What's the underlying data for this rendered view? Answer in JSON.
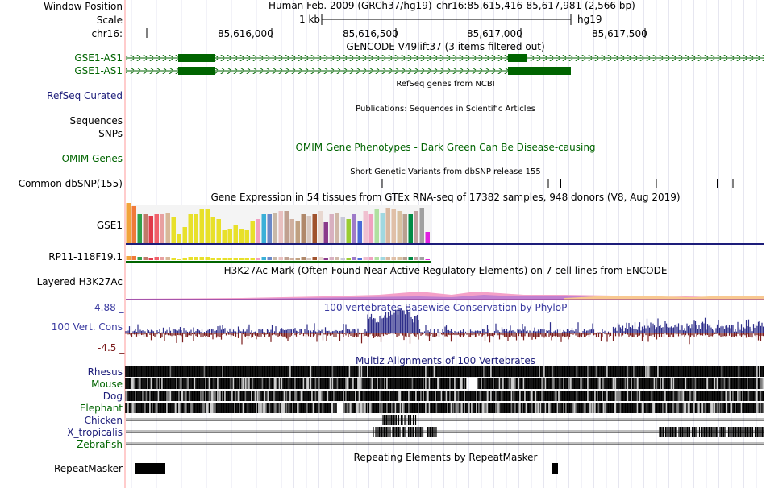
{
  "header": {
    "labels": {
      "window_position": "Window Position",
      "scale": "Scale",
      "chrom": "chr16:"
    },
    "assembly": "Human Feb. 2009 (GRCh37/hg19)",
    "position": "chr16:85,615,416-85,617,981 (2,566 bp)",
    "scale_value": "1 kb",
    "db": "hg19",
    "ticks": [
      "85,616,000",
      "85,616,500",
      "85,617,000",
      "85,617,500"
    ]
  },
  "tracks": {
    "gencode": {
      "title": "GENCODE V49lift37 (3 items filtered out)",
      "items": [
        "GSE1-AS1",
        "GSE1-AS1"
      ]
    },
    "refseq": {
      "title": "RefSeq genes from NCBI",
      "label": "RefSeq Curated"
    },
    "publications": {
      "title": "Publications: Sequences in Scientific Articles",
      "label_line1": "Sequences",
      "label_line2": "SNPs"
    },
    "omim": {
      "title": "OMIM Gene Phenotypes - Dark Green Can Be Disease-causing",
      "label": "OMIM Genes"
    },
    "dbsnp": {
      "title": "Short Genetic Variants from dbSNP release 155",
      "label": "Common dbSNP(155)"
    },
    "gtex": {
      "title": "Gene Expression in 54 tissues from GTEx RNA-seq of 17382 samples, 948 donors (V8, Aug 2019)",
      "gene1": "GSE1",
      "gene2": "RP11-118F19.1",
      "values": [
        50,
        46,
        36,
        36,
        34,
        36,
        36,
        38,
        32,
        12,
        20,
        36,
        36,
        42,
        42,
        32,
        30,
        16,
        18,
        22,
        18,
        16,
        28,
        30,
        36,
        36,
        38,
        40,
        40,
        30,
        28,
        36,
        34,
        36,
        40,
        26,
        36,
        38,
        32,
        30,
        36,
        28,
        40,
        36,
        42,
        38,
        44,
        42,
        40,
        36,
        36,
        40,
        44,
        14
      ],
      "colors": [
        "#f2a33a",
        "#f07a3a",
        "#2fa04a",
        "#c07a6a",
        "#e03a4a",
        "#f0606a",
        "#e8a0a0",
        "#d8b898",
        "#e8e02a",
        "#e8e02a",
        "#e8e02a",
        "#e8e02a",
        "#e8e02a",
        "#e8e02a",
        "#e8e02a",
        "#e8e02a",
        "#e8e02a",
        "#e8e02a",
        "#e8e02a",
        "#e8e02a",
        "#e8e02a",
        "#e8e02a",
        "#e8e02a",
        "#f0a0c0",
        "#3ab0d8",
        "#6a88c8",
        "#c8b8a8",
        "#e8c0c0",
        "#c0a090",
        "#d0b0a0",
        "#c0a080",
        "#b0886a",
        "#d8c8c0",
        "#a0522d",
        "#e8d8d0",
        "#8a3a8a",
        "#d8b0c0",
        "#d0b8a8",
        "#c8c8d8",
        "#9acd32",
        "#9e7ac8",
        "#4a6ad8",
        "#f0c0d0",
        "#f0a0c0",
        "#b0e0a0",
        "#a0d8e0",
        "#d8b8a0",
        "#e0c0a8",
        "#d8c0a0",
        "#b8a090",
        "#008b45",
        "#c0a0a0",
        "#a0a0a0",
        "#e020e0"
      ]
    },
    "h3k27ac": {
      "title": "H3K27Ac Mark (Often Found Near Active Regulatory Elements) on 7 cell lines from ENCODE",
      "label": "Layered H3K27Ac"
    },
    "phylop": {
      "title": "100 vertebrates Basewise Conservation by PhyloP",
      "label": "100 Vert. Cons",
      "ymax": "4.88 _",
      "ymin": "-4.5 _"
    },
    "multiz": {
      "title": "Multiz Alignments of 100 Vertebrates",
      "species": [
        "Rhesus",
        "Mouse",
        "Dog",
        "Elephant",
        "Chicken",
        "X_tropicalis",
        "Zebrafish"
      ]
    },
    "repeatmasker": {
      "title": "Repeating Elements by RepeatMasker",
      "label": "RepeatMasker"
    }
  },
  "colors": {
    "gene": "#006400",
    "refseq": "#1d1d7a",
    "phylop_pos": "#2e2e8a",
    "phylop_neg": "#7a1b1b",
    "grid": "#e6e6f0",
    "guide": "#ff9a9a"
  }
}
